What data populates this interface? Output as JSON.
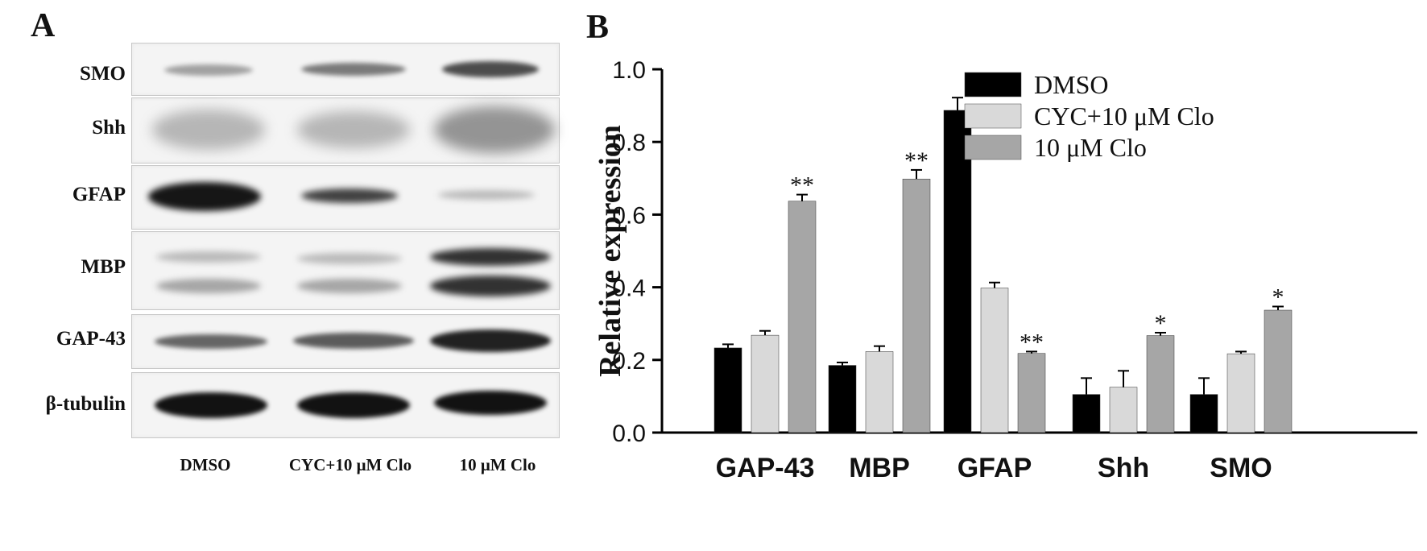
{
  "panels": {
    "left_label": "A",
    "right_label": "B"
  },
  "blot": {
    "rows": [
      "SMO",
      "Shh",
      "GFAP",
      "MBP",
      "GAP-43",
      "β-tubulin"
    ],
    "lanes": [
      "DMSO",
      "CYC+10 μM Clo",
      "10 μM Clo"
    ]
  },
  "chart_data": {
    "type": "bar",
    "categories": [
      "GAP-43",
      "MBP",
      "GFAP",
      "Shh",
      "SMO"
    ],
    "series": [
      {
        "name": "DMSO",
        "color": "#000000",
        "values": [
          0.233,
          0.185,
          0.887,
          0.105,
          0.105
        ],
        "errors": [
          0.01,
          0.008,
          0.035,
          0.045,
          0.045
        ],
        "sig": [
          "",
          "",
          "",
          "",
          ""
        ]
      },
      {
        "name": "CYC+10 μM Clo",
        "color": "#d9d9d9",
        "values": [
          0.268,
          0.223,
          0.398,
          0.125,
          0.217
        ],
        "errors": [
          0.012,
          0.015,
          0.015,
          0.045,
          0.006
        ],
        "sig": [
          "",
          "",
          "",
          "",
          ""
        ]
      },
      {
        "name": "10 μM Clo",
        "color": "#a6a6a6",
        "values": [
          0.637,
          0.698,
          0.218,
          0.267,
          0.337
        ],
        "errors": [
          0.018,
          0.025,
          0.005,
          0.008,
          0.01
        ],
        "sig": [
          "**",
          "**",
          "**",
          "*",
          "*"
        ]
      }
    ],
    "ylabel": "Relative expression",
    "xlabel": "",
    "ylim": [
      0,
      1.0
    ],
    "yticks": [
      "0.0",
      "0.2",
      "0.4",
      "0.6",
      "0.8",
      "1.0"
    ],
    "legend_position": "top-right",
    "grid": false
  }
}
